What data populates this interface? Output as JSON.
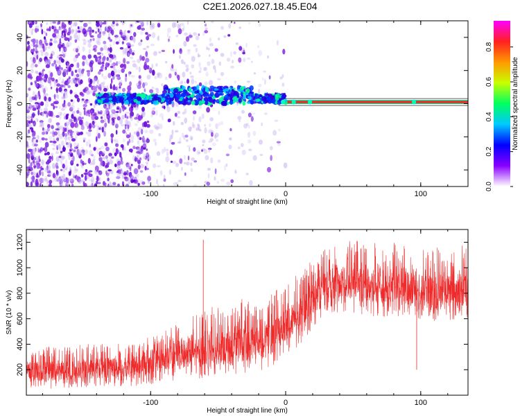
{
  "figure_title": "C2E1.2026.027.18.45.E04",
  "colors": {
    "snr_line": "#ee2a2a",
    "center_track": "#ff2020",
    "background": "#ffffff",
    "axis": "#000000"
  },
  "chart_data": [
    {
      "type": "heatmap",
      "title": "",
      "xlabel": "Height of straight line (km)",
      "ylabel": "Frequency (Hz)",
      "xlim": [
        -192,
        135
      ],
      "ylim": [
        -50,
        50
      ],
      "xticks": [
        -100,
        0,
        100
      ],
      "xticklabels": [
        "-100",
        "0",
        "100"
      ],
      "yticks": [
        -40,
        -20,
        0,
        20,
        40
      ],
      "yticklabels": [
        "-40",
        "-20",
        "0",
        "20",
        "40"
      ],
      "grid": false,
      "colorbar": {
        "label": "Normalized spectral amplitude",
        "range": [
          0,
          0.95
        ],
        "ticks": [
          0.0,
          0.2,
          0.4,
          0.6,
          0.8
        ],
        "ticklabels": [
          "0.0",
          "0.2",
          "0.4",
          "0.6",
          "0.8"
        ],
        "colormap": [
          "#ffffff",
          "#8a00ff",
          "#0000ff",
          "#00c8ff",
          "#00ff60",
          "#c8ff00",
          "#ff9900",
          "#ff2020",
          "#ff00ff"
        ]
      },
      "signal_track": {
        "description": "bright narrow band near 0 Hz",
        "x_start": -140,
        "x_end": 135,
        "frequency_hz": 1,
        "clean_from_x": -5
      },
      "noise_region": {
        "x_start": -192,
        "x_end": -10
      }
    },
    {
      "type": "line",
      "title": "",
      "xlabel": "Height of straight line (km)",
      "ylabel": "SNR (10 * v/v)",
      "xlim": [
        -192,
        135
      ],
      "ylim": [
        0,
        1300
      ],
      "xticks": [
        -100,
        0,
        100
      ],
      "xticklabels": [
        "-100",
        "0",
        "100"
      ],
      "yticks": [
        200,
        400,
        600,
        800,
        1000,
        1200
      ],
      "yticklabels": [
        "200",
        "400",
        "600",
        "800",
        "1000",
        "1200"
      ],
      "grid": false,
      "series": [
        {
          "name": "SNR",
          "envelope_x": [
            -192,
            -150,
            -110,
            -90,
            -70,
            -50,
            -30,
            -15,
            -5,
            5,
            15,
            25,
            35,
            60,
            90,
            110,
            135
          ],
          "envelope_low": [
            40,
            60,
            70,
            100,
            120,
            150,
            170,
            200,
            260,
            330,
            450,
            600,
            650,
            620,
            600,
            580,
            600
          ],
          "envelope_high": [
            380,
            400,
            420,
            520,
            640,
            720,
            760,
            780,
            850,
            920,
            1020,
            1120,
            1200,
            1220,
            1200,
            1160,
            1180
          ],
          "center": [
            180,
            200,
            230,
            290,
            340,
            370,
            400,
            420,
            500,
            580,
            700,
            830,
            880,
            860,
            840,
            800,
            830
          ]
        }
      ],
      "annotations": [
        {
          "x": -61,
          "value": 1220,
          "note": "isolated spike"
        },
        {
          "x": 97,
          "value": 200,
          "note": "dropout"
        }
      ]
    }
  ]
}
